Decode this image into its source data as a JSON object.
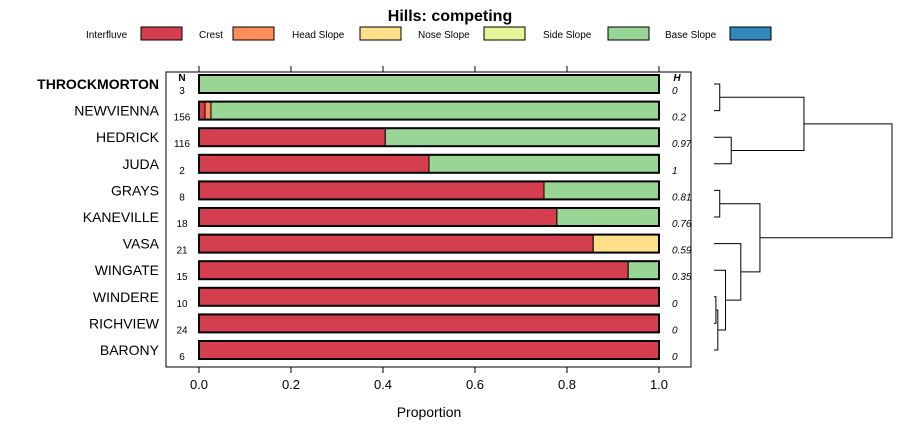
{
  "chart_data": {
    "type": "bar",
    "orientation": "horizontal",
    "stacked": true,
    "title": "Hills: competing",
    "xlabel": "Proportion",
    "ylabel": "",
    "xlim": [
      0,
      1
    ],
    "x_ticks": [
      "0.0",
      "0.2",
      "0.4",
      "0.6",
      "0.8",
      "1.0"
    ],
    "n_header": "N",
    "h_header": "H",
    "highlight": "THROCKMORTON",
    "legend_position": "top",
    "legend": [
      {
        "name": "Interfluve",
        "color": "#D53E4F"
      },
      {
        "name": "Crest",
        "color": "#FC8D59"
      },
      {
        "name": "Head Slope",
        "color": "#FEE08B"
      },
      {
        "name": "Nose Slope",
        "color": "#E6F598"
      },
      {
        "name": "Side Slope",
        "color": "#99D594"
      },
      {
        "name": "Base Slope",
        "color": "#3288BD"
      }
    ],
    "categories": [
      "THROCKMORTON",
      "NEWVIENNA",
      "HEDRICK",
      "JUDA",
      "GRAYS",
      "KANEVILLE",
      "VASA",
      "WINGATE",
      "WINDERE",
      "RICHVIEW",
      "BARONY"
    ],
    "n": [
      "3",
      "156",
      "116",
      "2",
      "8",
      "18",
      "21",
      "15",
      "10",
      "24",
      "6"
    ],
    "h": [
      "0",
      "0.2",
      "0.97",
      "1",
      "0.81",
      "0.76",
      "0.59",
      "0.35",
      "0",
      "0",
      "0"
    ],
    "series": [
      {
        "name": "Interfluve",
        "values": [
          0,
          0.013,
          0.405,
          0.5,
          0.75,
          0.778,
          0.857,
          0.933,
          1,
          1,
          1
        ]
      },
      {
        "name": "Crest",
        "values": [
          0,
          0.013,
          0,
          0,
          0,
          0,
          0,
          0,
          0,
          0,
          0
        ]
      },
      {
        "name": "Head Slope",
        "values": [
          0,
          0,
          0,
          0,
          0,
          0,
          0.143,
          0,
          0,
          0,
          0
        ]
      },
      {
        "name": "Nose Slope",
        "values": [
          0,
          0,
          0,
          0,
          0,
          0,
          0,
          0,
          0,
          0,
          0
        ]
      },
      {
        "name": "Side Slope",
        "values": [
          1,
          0.974,
          0.595,
          0.5,
          0.25,
          0.222,
          0,
          0.067,
          0,
          0,
          0
        ]
      },
      {
        "name": "Base Slope",
        "values": [
          0,
          0,
          0,
          0,
          0,
          0,
          0,
          0,
          0,
          0,
          0
        ]
      }
    ],
    "dendrogram": {
      "leaves": [
        "THROCKMORTON",
        "NEWVIENNA",
        "HEDRICK",
        "JUDA",
        "GRAYS",
        "KANEVILLE",
        "VASA",
        "WINGATE",
        "WINDERE",
        "RICHVIEW",
        "BARONY"
      ],
      "merges": [
        {
          "a": [
            8
          ],
          "b": [
            9
          ],
          "height": 0.01
        },
        {
          "a": [
            0
          ],
          "b": [
            1
          ],
          "height": 0.03
        },
        {
          "a": [
            2
          ],
          "b": [
            3
          ],
          "height": 0.09
        },
        {
          "a": [
            4
          ],
          "b": [
            5
          ],
          "height": 0.03
        },
        {
          "a": [
            8,
            9
          ],
          "b": [
            10
          ],
          "height": 0.02
        },
        {
          "a": [
            8,
            9,
            10
          ],
          "b": [
            7
          ],
          "height": 0.06
        },
        {
          "a": [
            7,
            8,
            9,
            10
          ],
          "b": [
            6
          ],
          "height": 0.14
        },
        {
          "a": [
            4,
            5
          ],
          "b": [
            6,
            7,
            8,
            9,
            10
          ],
          "height": 0.24
        },
        {
          "a": [
            0,
            1
          ],
          "b": [
            2,
            3
          ],
          "height": 0.47
        },
        {
          "a": [
            0,
            1,
            2,
            3
          ],
          "b": [
            4,
            5,
            6,
            7,
            8,
            9,
            10
          ],
          "height": 0.93
        }
      ]
    }
  }
}
